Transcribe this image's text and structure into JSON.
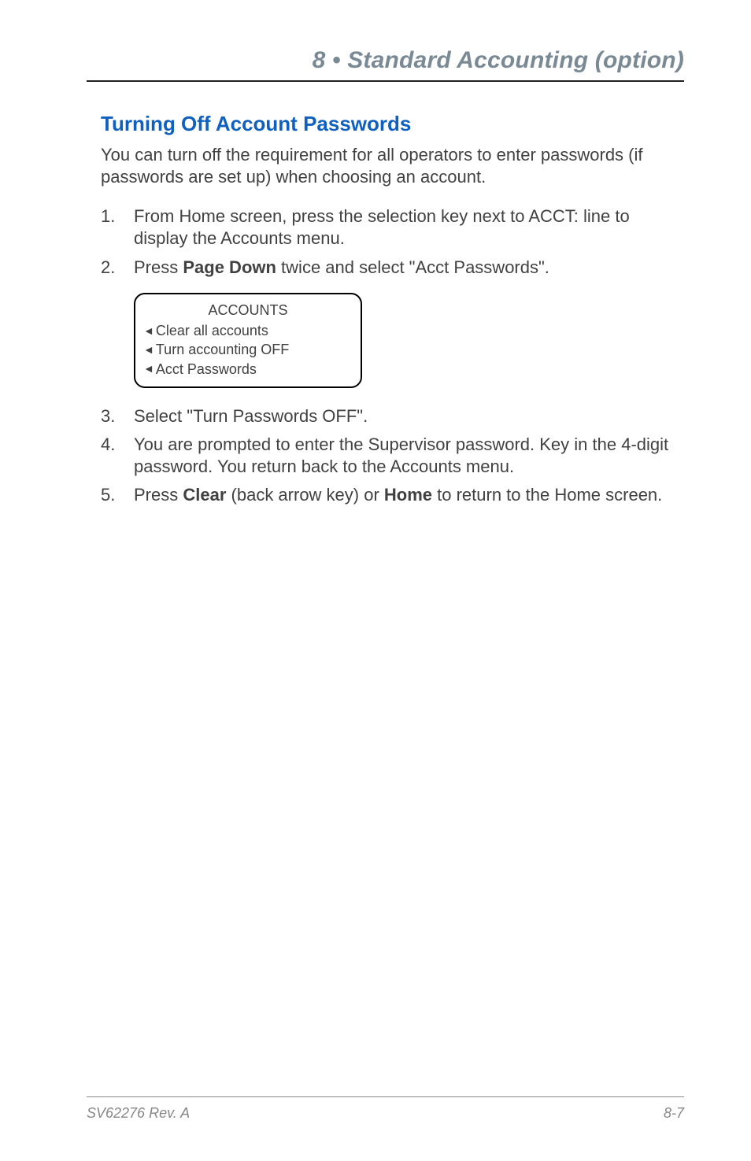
{
  "chapter": {
    "header": "8 • Standard Accounting (option)"
  },
  "section": {
    "heading": "Turning Off Account Passwords"
  },
  "intro": "You can turn off the requirement for all operators to enter passwords (if passwords are set up) when choosing an account.",
  "steps": {
    "s1": "From Home screen, press the selection key next to ACCT: line to display the Accounts menu.",
    "s2_pre": "Press ",
    "s2_bold": "Page Down",
    "s2_post": " twice and select \"Acct Passwords\".",
    "s3": "Select \"Turn Passwords OFF\".",
    "s4": "You are prompted to enter the Supervisor password. Key in the 4-digit password. You return back to the Accounts menu.",
    "s5_pre": "Press ",
    "s5_bold1": "Clear",
    "s5_mid": " (back arrow key) or ",
    "s5_bold2": "Home",
    "s5_post": " to return to the Home screen."
  },
  "screen": {
    "title": "ACCOUNTS",
    "line1": "Clear all accounts",
    "line2": "Turn accounting OFF",
    "line3": "Acct Passwords"
  },
  "footer": {
    "rev": "SV62276 Rev. A",
    "page": "8-7"
  },
  "colors": {
    "heading_blue": "#1060c0",
    "chapter_gray": "#7a8a95",
    "body_text": "#414141",
    "footer_gray": "#888888"
  }
}
